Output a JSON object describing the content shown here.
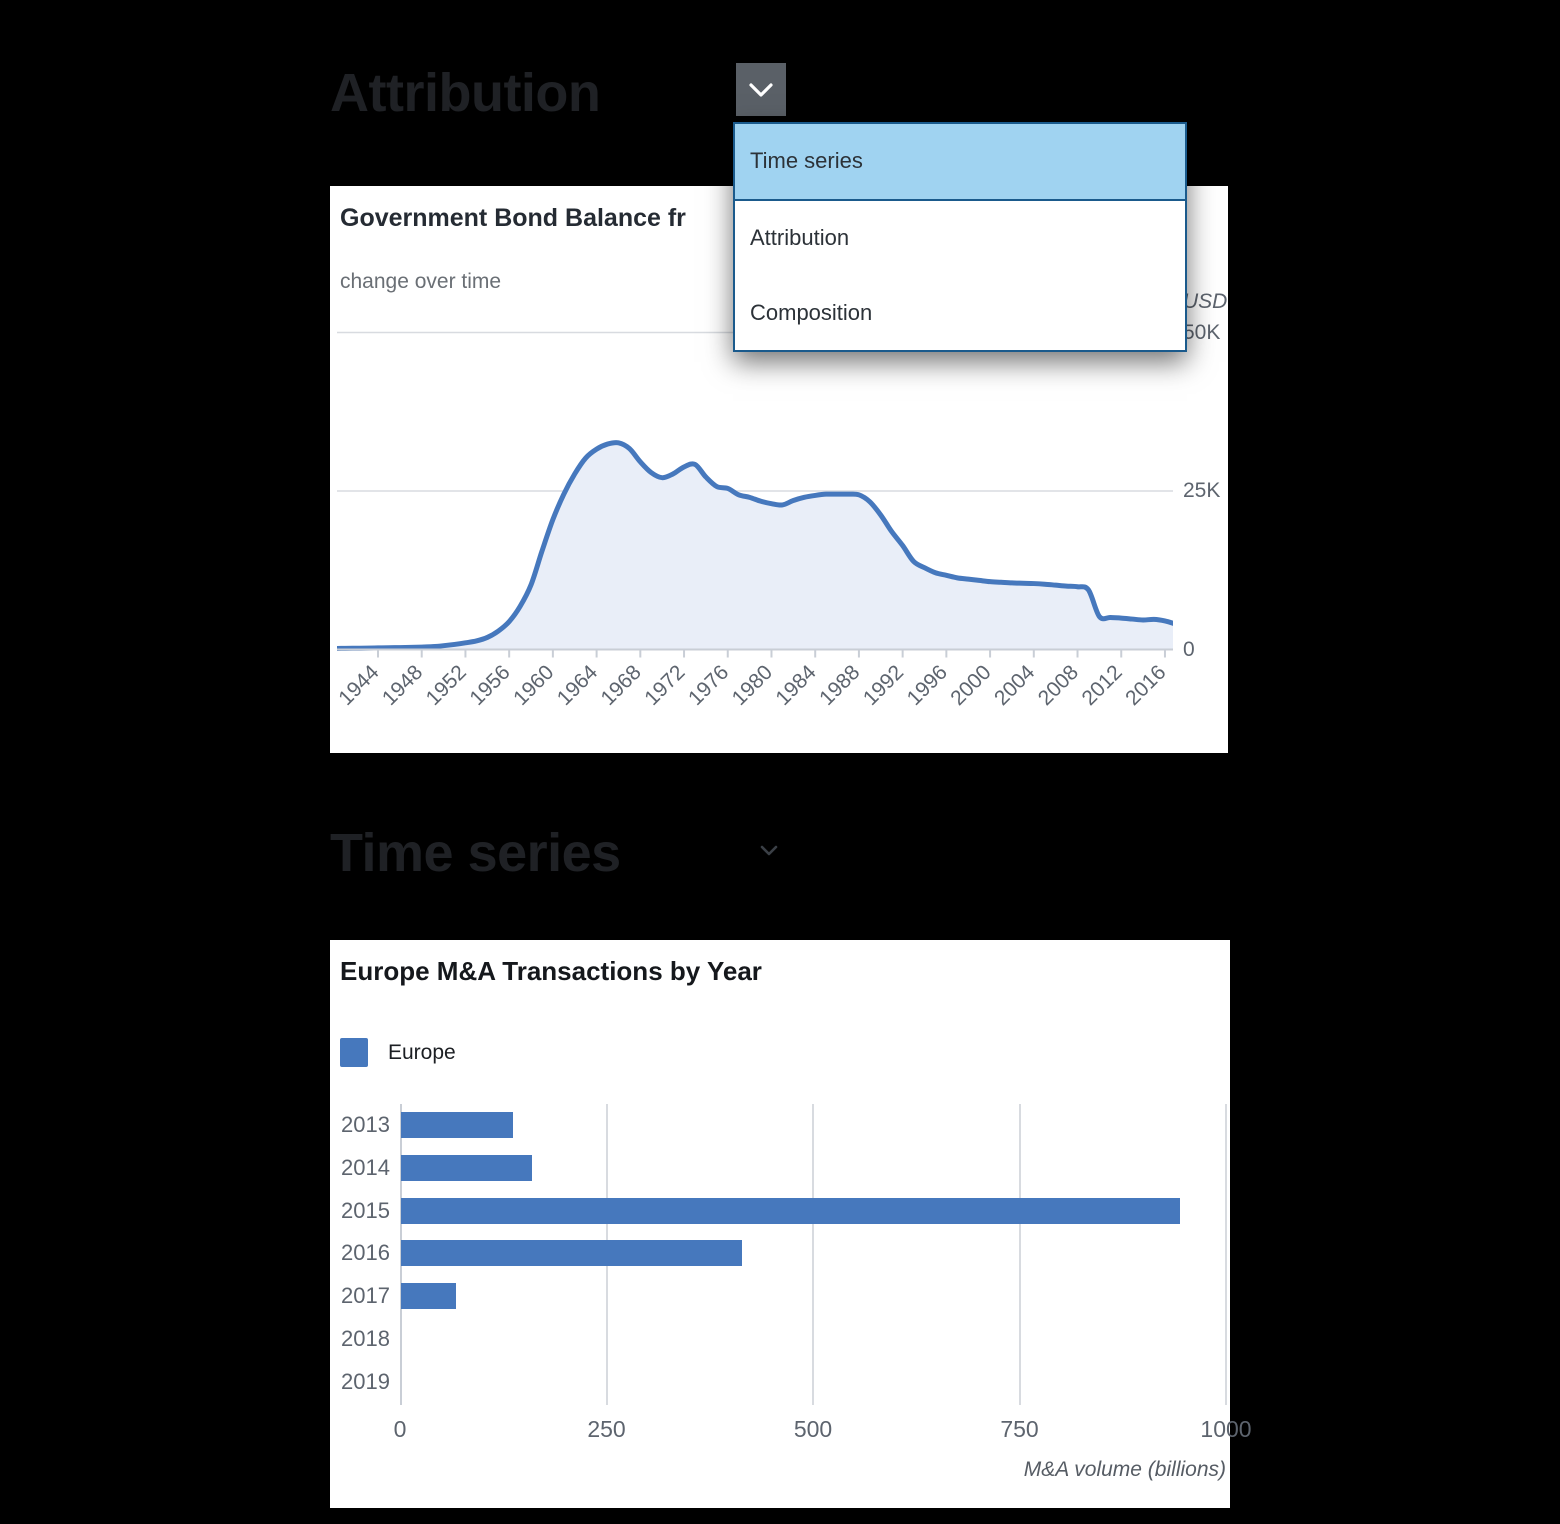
{
  "colors": {
    "page_bg": "#000000",
    "card_bg": "#ffffff",
    "heading_text": "#1f2125",
    "series_blue": "#4678bd",
    "area_fill": "#e9eef8",
    "gridline": "#d8dbe0",
    "axis_line": "#c9ced6",
    "tick_text": "#5d646e",
    "dropdown_border": "#1a5a8c",
    "dropdown_selected_bg": "#a0d3f1",
    "dropdown_button_bg": "#5a6067"
  },
  "section1": {
    "heading": "Attribution",
    "dropdown": {
      "items": [
        {
          "label": "Time series",
          "selected": true
        },
        {
          "label": "Attribution",
          "selected": false
        },
        {
          "label": "Composition",
          "selected": false
        }
      ]
    },
    "card": {
      "title": "Government Bond Balance fr",
      "subtitle": "change over time"
    }
  },
  "section2": {
    "heading": "Time series",
    "card": {
      "title": "Europe M&A Transactions by Year"
    }
  },
  "chart_data": [
    {
      "type": "area",
      "title": "Government Bond Balance fr",
      "subtitle": "change over time",
      "y_unit_label": "USD",
      "ytick_values": [
        50,
        25,
        0
      ],
      "ytick_labels": [
        "50K",
        "25K",
        "0"
      ],
      "ylim": [
        0,
        50
      ],
      "y_values_unit": "thousands of USD (K)",
      "xtick_label_years": [
        1944,
        1948,
        1952,
        1956,
        1960,
        1964,
        1968,
        1972,
        1976,
        1980,
        1984,
        1988,
        1992,
        1996,
        2000,
        2004,
        2008,
        2012,
        2016
      ],
      "x": [
        1940,
        1941,
        1942,
        1943,
        1944,
        1945,
        1946,
        1947,
        1948,
        1949,
        1950,
        1951,
        1952,
        1953,
        1954,
        1955,
        1956,
        1957,
        1958,
        1959,
        1960,
        1961,
        1962,
        1963,
        1964,
        1965,
        1966,
        1967,
        1968,
        1969,
        1970,
        1971,
        1972,
        1973,
        1974,
        1975,
        1976,
        1977,
        1978,
        1979,
        1980,
        1981,
        1982,
        1983,
        1984,
        1985,
        1986,
        1987,
        1988,
        1989,
        1990,
        1991,
        1992,
        1993,
        1994,
        1995,
        1996,
        1997,
        1998,
        1999,
        2000,
        2001,
        2002,
        2003,
        2004,
        2005,
        2006,
        2007,
        2008,
        2009,
        2010,
        2011,
        2012,
        2013,
        2014,
        2015,
        2016,
        2017
      ],
      "values": [
        0.15,
        0.18,
        0.2,
        0.22,
        0.25,
        0.28,
        0.3,
        0.33,
        0.38,
        0.45,
        0.6,
        0.8,
        1.05,
        1.35,
        1.9,
        2.9,
        4.4,
        6.8,
        10.2,
        15.5,
        20.5,
        24.5,
        27.7,
        30.2,
        31.6,
        32.4,
        32.6,
        31.7,
        29.6,
        27.9,
        27.1,
        27.7,
        28.8,
        29.2,
        27.2,
        25.7,
        25.4,
        24.4,
        24.0,
        23.4,
        23.0,
        22.8,
        23.5,
        24.0,
        24.3,
        24.5,
        24.5,
        24.5,
        24.4,
        23.3,
        21.2,
        18.6,
        16.4,
        13.9,
        12.9,
        12.1,
        11.7,
        11.3,
        11.1,
        10.9,
        10.7,
        10.6,
        10.5,
        10.45,
        10.4,
        10.3,
        10.15,
        10.0,
        9.9,
        9.4,
        5.2,
        5.05,
        4.95,
        4.8,
        4.65,
        4.75,
        4.5,
        4.0
      ],
      "grid": true,
      "legend": "none"
    },
    {
      "type": "bar",
      "orientation": "horizontal",
      "title": "Europe M&A Transactions by Year",
      "series_name": "Europe",
      "categories": [
        "2013",
        "2014",
        "2015",
        "2016",
        "2017",
        "2018",
        "2019"
      ],
      "values": [
        135,
        158,
        943,
        413,
        67,
        0,
        0
      ],
      "xlabel": "M&A volume (billions)",
      "xticks": [
        0,
        250,
        500,
        750,
        1000
      ],
      "xlim": [
        0,
        1000
      ],
      "grid": true,
      "legend_position": "top-left"
    }
  ]
}
